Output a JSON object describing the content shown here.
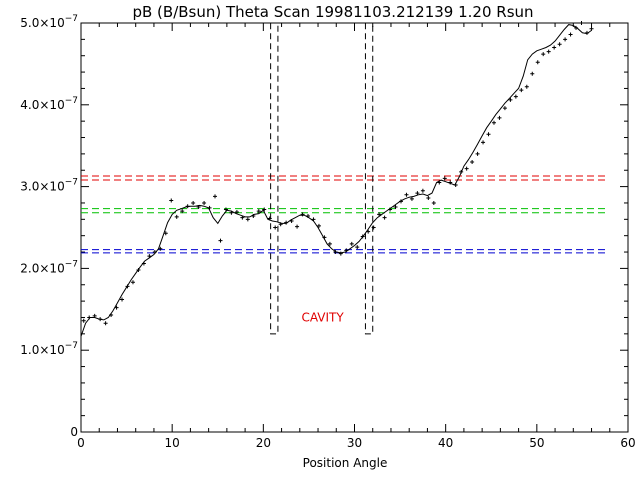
{
  "chart_data": {
    "type": "line",
    "title": "pB (B/Bsun) Theta Scan 19981103.212139 1.20 Rsun",
    "xlabel": "Position Angle",
    "ylabel": "",
    "xlim": [
      0,
      60
    ],
    "ylim": [
      0,
      5e-07
    ],
    "x_ticks": [
      0,
      10,
      20,
      30,
      40,
      50,
      60
    ],
    "x_tick_labels": [
      "0",
      "10",
      "20",
      "30",
      "40",
      "50",
      "60"
    ],
    "y_ticks": [
      0,
      1e-07,
      2e-07,
      3e-07,
      4e-07,
      5e-07
    ],
    "y_tick_labels": [
      {
        "mantissa": "0",
        "exponent": ""
      },
      {
        "mantissa": "1.0×10",
        "exponent": "−7"
      },
      {
        "mantissa": "2.0×10",
        "exponent": "−7"
      },
      {
        "mantissa": "3.0×10",
        "exponent": "−7"
      },
      {
        "mantissa": "4.0×10",
        "exponent": "−7"
      },
      {
        "mantissa": "5.0×10",
        "exponent": "−7"
      }
    ],
    "grid": false,
    "series": [
      {
        "style": "smooth-line",
        "color": "#000000",
        "x": [
          0,
          0.5,
          1,
          1.5,
          2,
          2.5,
          3,
          3.5,
          4,
          4.5,
          5,
          5.5,
          6,
          6.5,
          7,
          7.5,
          8,
          8.5,
          9,
          9.5,
          10,
          10.5,
          11,
          11.5,
          12,
          12.5,
          13,
          13.5,
          14,
          14.5,
          15,
          15.5,
          16,
          16.5,
          17,
          17.5,
          18,
          18.5,
          19,
          19.5,
          20,
          20.5,
          21,
          21.5,
          22,
          22.5,
          23,
          23.5,
          24,
          24.5,
          25,
          25.5,
          26,
          26.5,
          27,
          27.5,
          28,
          28.5,
          29,
          29.5,
          30,
          30.5,
          31,
          31.5,
          32,
          32.5,
          33,
          33.5,
          34,
          34.5,
          35,
          35.5,
          36,
          36.5,
          37,
          37.5,
          38,
          38.5,
          39,
          39.5,
          40,
          40.5,
          41,
          41.5,
          42,
          42.5,
          43,
          43.5,
          44,
          44.5,
          45,
          45.5,
          46,
          46.5,
          47,
          47.5,
          48,
          48.5,
          49,
          49.5,
          50,
          50.5,
          51,
          51.5,
          52,
          52.5,
          53,
          53.5,
          54,
          54.5,
          55,
          55.5,
          56
        ],
        "y": [
          1.17e-07,
          1.33e-07,
          1.4e-07,
          1.4e-07,
          1.38e-07,
          1.37e-07,
          1.4e-07,
          1.48e-07,
          1.58e-07,
          1.68e-07,
          1.77e-07,
          1.86e-07,
          1.94e-07,
          2.02e-07,
          2.09e-07,
          2.13e-07,
          2.17e-07,
          2.24e-07,
          2.4e-07,
          2.56e-07,
          2.66e-07,
          2.71e-07,
          2.73e-07,
          2.75e-07,
          2.76e-07,
          2.76e-07,
          2.77e-07,
          2.76e-07,
          2.74e-07,
          2.62e-07,
          2.55e-07,
          2.64e-07,
          2.71e-07,
          2.7e-07,
          2.67e-07,
          2.65e-07,
          2.63e-07,
          2.63e-07,
          2.66e-07,
          2.67e-07,
          2.71e-07,
          2.6e-07,
          2.58e-07,
          2.57e-07,
          2.55e-07,
          2.55e-07,
          2.59e-07,
          2.62e-07,
          2.65e-07,
          2.65e-07,
          2.62e-07,
          2.58e-07,
          2.5e-07,
          2.4e-07,
          2.3e-07,
          2.24e-07,
          2.2e-07,
          2.19e-07,
          2.2e-07,
          2.24e-07,
          2.28e-07,
          2.33e-07,
          2.4e-07,
          2.48e-07,
          2.56e-07,
          2.62e-07,
          2.66e-07,
          2.7e-07,
          2.74e-07,
          2.78e-07,
          2.82e-07,
          2.85e-07,
          2.87e-07,
          2.88e-07,
          2.9e-07,
          2.91e-07,
          2.89e-07,
          2.92e-07,
          3.05e-07,
          3.08e-07,
          3.06e-07,
          3.04e-07,
          3.02e-07,
          3.12e-07,
          3.25e-07,
          3.33e-07,
          3.42e-07,
          3.52e-07,
          3.62e-07,
          3.72e-07,
          3.8e-07,
          3.88e-07,
          3.95e-07,
          4.02e-07,
          4.08e-07,
          4.14e-07,
          4.2e-07,
          4.35e-07,
          4.55e-07,
          4.62e-07,
          4.66e-07,
          4.68e-07,
          4.7e-07,
          4.73e-07,
          4.78e-07,
          4.85e-07,
          4.92e-07,
          4.98e-07,
          4.97e-07,
          4.93e-07,
          4.88e-07,
          4.87e-07,
          4.91e-07
        ]
      },
      {
        "style": "scatter-plus",
        "color": "#000000",
        "x": [
          0.3,
          0.9,
          1.5,
          2.1,
          2.7,
          3.3,
          3.9,
          4.5,
          5.1,
          5.7,
          6.3,
          6.9,
          7.5,
          8.1,
          8.7,
          9.3,
          9.9,
          10.5,
          11.1,
          11.7,
          12.3,
          12.9,
          13.5,
          14.1,
          14.7,
          15.3,
          15.9,
          16.5,
          17.1,
          17.7,
          18.3,
          18.9,
          19.5,
          20.1,
          20.7,
          21.3,
          21.9,
          22.5,
          23.1,
          23.7,
          24.3,
          24.9,
          25.5,
          26.1,
          26.7,
          27.3,
          27.9,
          28.5,
          29.1,
          29.7,
          30.3,
          30.9,
          31.5,
          32.1,
          32.7,
          33.3,
          33.9,
          34.5,
          35.1,
          35.7,
          36.3,
          36.9,
          37.5,
          38.1,
          38.7,
          39.3,
          39.9,
          40.5,
          41.1,
          41.7,
          42.3,
          42.9,
          43.5,
          44.1,
          44.7,
          45.3,
          45.9,
          46.5,
          47.1,
          47.7,
          48.3,
          48.9,
          49.5,
          50.1,
          50.7,
          51.3,
          51.9,
          52.5,
          53.1,
          53.7,
          54.3,
          54.9,
          55.5,
          56.0
        ],
        "y": [
          1.36e-07,
          1.4e-07,
          1.42e-07,
          1.38e-07,
          1.33e-07,
          1.43e-07,
          1.52e-07,
          1.62e-07,
          1.78e-07,
          1.83e-07,
          1.98e-07,
          2.06e-07,
          2.15e-07,
          2.2e-07,
          2.24e-07,
          2.43e-07,
          2.83e-07,
          2.63e-07,
          2.7e-07,
          2.76e-07,
          2.8e-07,
          2.75e-07,
          2.8e-07,
          2.74e-07,
          2.88e-07,
          2.34e-07,
          2.72e-07,
          2.68e-07,
          2.69e-07,
          2.62e-07,
          2.6e-07,
          2.64e-07,
          2.7e-07,
          2.72e-07,
          2.61e-07,
          2.5e-07,
          2.54e-07,
          2.56e-07,
          2.58e-07,
          2.51e-07,
          2.66e-07,
          2.64e-07,
          2.6e-07,
          2.52e-07,
          2.38e-07,
          2.3e-07,
          2.2e-07,
          2.18e-07,
          2.22e-07,
          2.3e-07,
          2.26e-07,
          2.39e-07,
          2.45e-07,
          2.5e-07,
          2.66e-07,
          2.62e-07,
          2.72e-07,
          2.75e-07,
          2.82e-07,
          2.9e-07,
          2.85e-07,
          2.92e-07,
          2.95e-07,
          2.86e-07,
          2.8e-07,
          3.05e-07,
          3.1e-07,
          3.05e-07,
          3.02e-07,
          3.18e-07,
          3.22e-07,
          3.3e-07,
          3.4e-07,
          3.54e-07,
          3.64e-07,
          3.78e-07,
          3.84e-07,
          3.96e-07,
          4.06e-07,
          4.1e-07,
          4.18e-07,
          4.22e-07,
          4.38e-07,
          4.52e-07,
          4.62e-07,
          4.65e-07,
          4.7e-07,
          4.74e-07,
          4.8e-07,
          4.86e-07,
          4.94e-07,
          5e-07,
          4.88e-07,
          4.93e-07
        ]
      }
    ],
    "h_lines": [
      {
        "y": 3.13e-07,
        "color": "#e00000",
        "style": "dashed"
      },
      {
        "y": 3.08e-07,
        "color": "#e00000",
        "style": "dashed"
      },
      {
        "y": 2.73e-07,
        "color": "#00c000",
        "style": "dashed"
      },
      {
        "y": 2.68e-07,
        "color": "#00c000",
        "style": "dashed"
      },
      {
        "y": 2.23e-07,
        "color": "#0000d0",
        "style": "dashed"
      },
      {
        "y": 2.19e-07,
        "color": "#0000d0",
        "style": "dashed"
      }
    ],
    "boxes": [
      {
        "x0": 20.8,
        "x1": 21.6,
        "y0": 1.2e-07,
        "y1": 5e-07,
        "color": "#000000",
        "style": "dashed"
      },
      {
        "x0": 31.2,
        "x1": 32.0,
        "y0": 1.2e-07,
        "y1": 5e-07,
        "color": "#000000",
        "style": "dashed"
      }
    ],
    "annotations": [
      {
        "text": "CAVITY",
        "x": 26.5,
        "y": 1.35e-07,
        "color": "#e00000"
      }
    ]
  }
}
